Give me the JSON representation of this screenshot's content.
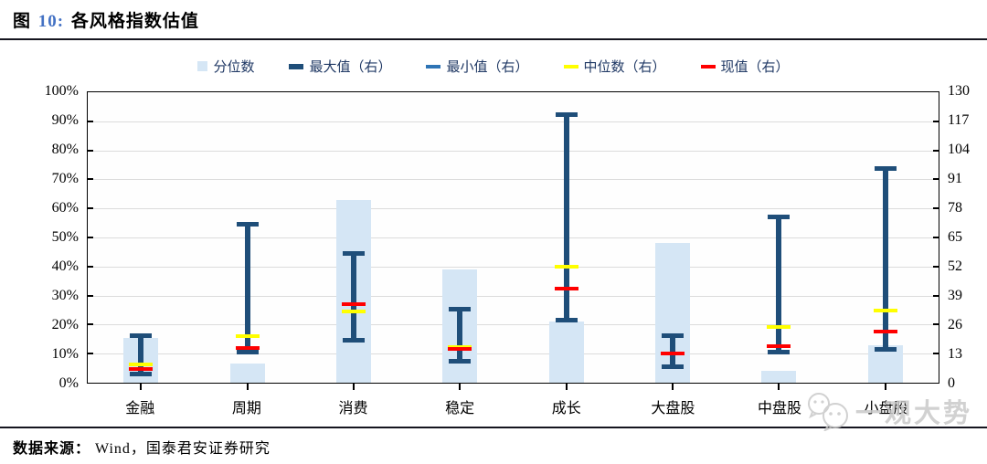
{
  "figure": {
    "prefix": "图",
    "number": "10:",
    "title": "各风格指数估值"
  },
  "legend": {
    "items": [
      {
        "label": "分位数",
        "marker": "square",
        "color_key": "bar"
      },
      {
        "label": "最大值（右）",
        "marker": "dash-thick",
        "color_key": "whisker"
      },
      {
        "label": "最小值（右）",
        "marker": "dash",
        "color_key": "whisker_light"
      },
      {
        "label": "中位数（右）",
        "marker": "dash",
        "color_key": "median"
      },
      {
        "label": "现值（右）",
        "marker": "dash",
        "color_key": "current"
      }
    ]
  },
  "chart_data": {
    "type": "bar",
    "subtype": "percentile bars (left axis) with max-min whiskers, median and current value dashes (right axis)",
    "categories": [
      "金融",
      "周期",
      "消费",
      "稳定",
      "成长",
      "大盘股",
      "中盘股",
      "小盘股"
    ],
    "series": [
      {
        "name": "分位数",
        "axis": "left",
        "unit": "%",
        "values": [
          15.5,
          6.5,
          63,
          39,
          21,
          48,
          4,
          13
        ]
      },
      {
        "name": "最大值（右）",
        "axis": "right",
        "values": [
          21,
          71,
          58,
          33,
          120,
          21,
          74,
          96
        ]
      },
      {
        "name": "最小值（右）",
        "axis": "right",
        "values": [
          4,
          13.5,
          19,
          9.5,
          28,
          7,
          13.5,
          15
        ]
      },
      {
        "name": "中位数（右）",
        "axis": "right",
        "values": [
          8,
          21,
          32,
          16,
          52,
          13,
          25,
          32.5
        ]
      },
      {
        "name": "现值（右）",
        "axis": "right",
        "values": [
          6,
          15.5,
          35,
          15,
          42,
          13,
          16.5,
          23
        ]
      }
    ],
    "left_axis": {
      "min": 0,
      "max": 100,
      "tick_labels": [
        "100%",
        "90%",
        "80%",
        "70%",
        "60%",
        "50%",
        "40%",
        "30%",
        "20%",
        "10%",
        "0%"
      ]
    },
    "right_axis": {
      "min": 0,
      "max": 130,
      "tick_labels": [
        "130",
        "117",
        "104",
        "91",
        "78",
        "65",
        "52",
        "39",
        "26",
        "13",
        "0"
      ]
    },
    "grid": true,
    "legend_position": "top-center",
    "title": "各风格指数估值"
  },
  "source": {
    "prefix": "数据来源：",
    "text": "Wind，国泰君安证券研究"
  },
  "watermark": {
    "text": "一观大势"
  },
  "colors": {
    "bar": "#D5E6F5",
    "whisker": "#1F4E79",
    "whisker_light": "#2E74B5",
    "median": "#FFFF00",
    "current": "#FF0000",
    "grid": "#DCDCDC",
    "axis": "#000000",
    "legend_text": "#1F3864",
    "figure_number": "#4472C4",
    "watermark": "#C9C9C9"
  }
}
